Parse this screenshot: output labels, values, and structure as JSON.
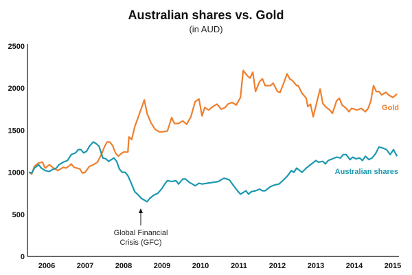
{
  "chart_data": {
    "type": "line",
    "title": "Australian shares vs. Gold",
    "subtitle": "(in AUD)",
    "xlabel": "",
    "ylabel": "",
    "xlim": [
      2005.5,
      2015.15
    ],
    "ylim": [
      0,
      2500
    ],
    "y_ticks": [
      "0",
      "500",
      "1000",
      "1500",
      "2000",
      "2500"
    ],
    "y_tick_values": [
      0,
      500,
      1000,
      1500,
      2000,
      2500
    ],
    "x_ticks": [
      "2006",
      "2007",
      "2008",
      "2009",
      "2010",
      "2011",
      "2012",
      "2013",
      "2014",
      "2015"
    ],
    "x_tick_values": [
      2006,
      2007,
      2008,
      2009,
      2010,
      2011,
      2012,
      2013,
      2014,
      2015
    ],
    "grid": false,
    "annotation": {
      "lines": [
        "Global Financial",
        "Crisis (GFC)"
      ],
      "x": 2008.43,
      "y": 650
    },
    "series": [
      {
        "name": "Gold",
        "color": "#ee7f2d",
        "x": [
          2005.54,
          2005.61,
          2005.68,
          2005.79,
          2005.89,
          2005.96,
          2006.07,
          2006.18,
          2006.29,
          2006.36,
          2006.43,
          2006.5,
          2006.57,
          2006.64,
          2006.71,
          2006.79,
          2006.86,
          2006.93,
          2007.0,
          2007.11,
          2007.21,
          2007.32,
          2007.43,
          2007.5,
          2007.57,
          2007.64,
          2007.71,
          2007.79,
          2007.86,
          2007.93,
          2008.0,
          2008.11,
          2008.14,
          2008.21,
          2008.29,
          2008.36,
          2008.43,
          2008.54,
          2008.61,
          2008.71,
          2008.82,
          2008.93,
          2009.0,
          2009.14,
          2009.25,
          2009.32,
          2009.43,
          2009.54,
          2009.64,
          2009.75,
          2009.86,
          2009.96,
          2010.04,
          2010.11,
          2010.21,
          2010.32,
          2010.43,
          2010.54,
          2010.64,
          2010.71,
          2010.82,
          2010.93,
          2011.04,
          2011.11,
          2011.21,
          2011.29,
          2011.36,
          2011.43,
          2011.54,
          2011.61,
          2011.68,
          2011.82,
          2011.89,
          2012.0,
          2012.07,
          2012.18,
          2012.25,
          2012.32,
          2012.39,
          2012.5,
          2012.54,
          2012.64,
          2012.75,
          2012.79,
          2012.86,
          2012.93,
          2013.11,
          2013.18,
          2013.25,
          2013.36,
          2013.43,
          2013.54,
          2013.61,
          2013.68,
          2013.79,
          2013.86,
          2013.93,
          2014.07,
          2014.18,
          2014.29,
          2014.36,
          2014.43,
          2014.5,
          2014.57,
          2014.64,
          2014.71,
          2014.82,
          2014.89,
          2015.0,
          2015.11
        ],
        "values": [
          1000,
          980,
          1070,
          1110,
          1120,
          1050,
          1090,
          1050,
          1020,
          1040,
          1060,
          1050,
          1070,
          1100,
          1060,
          1050,
          1040,
          990,
          1000,
          1070,
          1090,
          1120,
          1220,
          1300,
          1360,
          1360,
          1320,
          1230,
          1190,
          1220,
          1240,
          1240,
          1420,
          1390,
          1540,
          1630,
          1720,
          1860,
          1700,
          1590,
          1510,
          1480,
          1480,
          1490,
          1650,
          1580,
          1580,
          1610,
          1570,
          1660,
          1840,
          1870,
          1670,
          1770,
          1740,
          1780,
          1810,
          1750,
          1770,
          1810,
          1830,
          1800,
          1890,
          2210,
          2150,
          2120,
          2190,
          1960,
          2080,
          2110,
          2030,
          2030,
          2060,
          1960,
          1950,
          2080,
          2170,
          2110,
          2090,
          2030,
          2030,
          1940,
          1880,
          1780,
          1810,
          1660,
          1990,
          1820,
          1780,
          1740,
          1700,
          1850,
          1880,
          1800,
          1760,
          1720,
          1760,
          1740,
          1760,
          1720,
          1760,
          1850,
          2030,
          1960,
          1960,
          1920,
          1950,
          1920,
          1890,
          1930
        ]
      },
      {
        "name": "Australian shares",
        "color": "#1b98ae",
        "x": [
          2005.54,
          2005.61,
          2005.68,
          2005.79,
          2005.86,
          2005.96,
          2006.07,
          2006.14,
          2006.25,
          2006.32,
          2006.43,
          2006.54,
          2006.64,
          2006.75,
          2006.82,
          2006.89,
          2006.96,
          2007.04,
          2007.11,
          2007.21,
          2007.29,
          2007.36,
          2007.46,
          2007.54,
          2007.61,
          2007.68,
          2007.75,
          2007.82,
          2007.89,
          2007.96,
          2008.04,
          2008.11,
          2008.18,
          2008.29,
          2008.36,
          2008.46,
          2008.61,
          2008.68,
          2008.79,
          2008.89,
          2009.0,
          2009.07,
          2009.14,
          2009.25,
          2009.36,
          2009.43,
          2009.54,
          2009.61,
          2009.71,
          2009.79,
          2009.86,
          2009.96,
          2010.04,
          2010.18,
          2010.32,
          2010.46,
          2010.61,
          2010.75,
          2010.86,
          2010.96,
          2011.04,
          2011.11,
          2011.18,
          2011.25,
          2011.32,
          2011.43,
          2011.54,
          2011.61,
          2011.68,
          2011.82,
          2011.93,
          2012.04,
          2012.14,
          2012.25,
          2012.36,
          2012.43,
          2012.5,
          2012.64,
          2012.75,
          2012.86,
          2013.0,
          2013.07,
          2013.18,
          2013.25,
          2013.32,
          2013.43,
          2013.54,
          2013.64,
          2013.71,
          2013.79,
          2013.89,
          2013.96,
          2014.04,
          2014.14,
          2014.21,
          2014.29,
          2014.38,
          2014.46,
          2014.55,
          2014.64,
          2014.73,
          2014.84,
          2014.93,
          2015.02,
          2015.11
        ],
        "values": [
          1000,
          990,
          1050,
          1090,
          1050,
          1020,
          1010,
          1030,
          1050,
          1090,
          1120,
          1140,
          1210,
          1230,
          1270,
          1270,
          1230,
          1250,
          1310,
          1360,
          1340,
          1310,
          1170,
          1160,
          1130,
          1150,
          1170,
          1130,
          1040,
          1000,
          1000,
          960,
          890,
          770,
          740,
          690,
          650,
          690,
          730,
          750,
          810,
          860,
          900,
          890,
          900,
          860,
          920,
          920,
          880,
          860,
          840,
          870,
          860,
          870,
          880,
          890,
          930,
          910,
          840,
          780,
          740,
          760,
          780,
          740,
          770,
          780,
          800,
          780,
          780,
          830,
          850,
          860,
          900,
          950,
          1020,
          1000,
          1050,
          1000,
          1050,
          1090,
          1140,
          1120,
          1130,
          1100,
          1140,
          1160,
          1180,
          1170,
          1210,
          1210,
          1150,
          1180,
          1160,
          1170,
          1140,
          1190,
          1150,
          1170,
          1220,
          1300,
          1290,
          1270,
          1210,
          1270,
          1190
        ]
      }
    ]
  }
}
